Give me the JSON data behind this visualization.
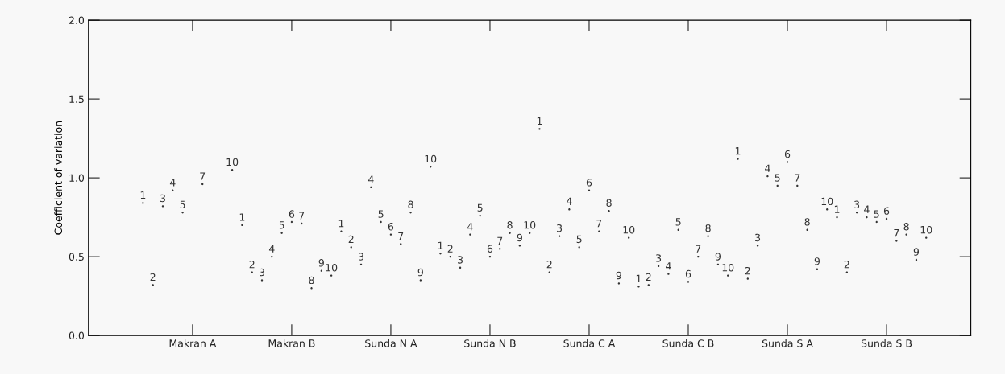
{
  "chart_data": {
    "type": "scatter",
    "ylabel": "Coefficient of variation",
    "categories": [
      null,
      null,
      null,
      null,
      null,
      "Makran A",
      null,
      null,
      null,
      null,
      null,
      null,
      null,
      null,
      null,
      "Makran B",
      null,
      null,
      null,
      null,
      null,
      null,
      null,
      null,
      null,
      "Sunda N A",
      null,
      null,
      null,
      null,
      null,
      null,
      null,
      null,
      null,
      "Sunda N B",
      null,
      null,
      null,
      null,
      null,
      null,
      null,
      null,
      null,
      "Sunda C A",
      null,
      null,
      null,
      null,
      null,
      null,
      null,
      null,
      null,
      "Sunda C B",
      null,
      null,
      null,
      null,
      null,
      null,
      null,
      null,
      null,
      "Sunda S A",
      null,
      null,
      null,
      null,
      null,
      null,
      null,
      null,
      null,
      "Sunda S B",
      null,
      null,
      null,
      null
    ],
    "ylim": [
      0,
      2.0
    ],
    "yticks": [
      {
        "value": 0,
        "label": "0.0"
      },
      0.5,
      {
        "value": 1,
        "label": "1.0"
      },
      1.5,
      {
        "value": 2,
        "label": "2.0"
      }
    ],
    "series": [
      {
        "name": "1",
        "color": "#333333",
        "values": [
          0.84,
          null,
          null,
          null,
          null,
          null,
          null,
          null,
          null,
          null,
          0.7,
          null,
          null,
          null,
          null,
          null,
          null,
          null,
          null,
          null,
          0.66,
          null,
          null,
          null,
          null,
          null,
          null,
          null,
          null,
          null,
          0.52,
          null,
          null,
          null,
          null,
          null,
          null,
          null,
          null,
          null,
          1.31,
          null,
          null,
          null,
          null,
          null,
          null,
          null,
          null,
          null,
          0.31,
          null,
          null,
          null,
          null,
          null,
          null,
          null,
          null,
          null,
          1.12,
          null,
          null,
          null,
          null,
          null,
          null,
          null,
          null,
          null,
          0.75,
          null,
          null,
          null,
          null,
          null,
          null,
          null,
          null,
          null
        ]
      },
      {
        "name": "2",
        "color": "#333333",
        "values": [
          null,
          0.32,
          null,
          null,
          null,
          null,
          null,
          null,
          null,
          null,
          null,
          0.4,
          null,
          null,
          null,
          null,
          null,
          null,
          null,
          null,
          null,
          0.56,
          null,
          null,
          null,
          null,
          null,
          null,
          null,
          null,
          null,
          0.5,
          null,
          null,
          null,
          null,
          null,
          null,
          null,
          null,
          null,
          0.4,
          null,
          null,
          null,
          null,
          null,
          null,
          null,
          null,
          null,
          0.32,
          null,
          null,
          null,
          null,
          null,
          null,
          null,
          null,
          null,
          0.36,
          null,
          null,
          null,
          null,
          null,
          null,
          null,
          null,
          null,
          0.4,
          null,
          null,
          null,
          null,
          null,
          null,
          null,
          null
        ]
      },
      {
        "name": "3",
        "color": "#333333",
        "values": [
          null,
          null,
          0.82,
          null,
          null,
          null,
          null,
          null,
          null,
          null,
          null,
          null,
          0.35,
          null,
          null,
          null,
          null,
          null,
          null,
          null,
          null,
          null,
          0.45,
          null,
          null,
          null,
          null,
          null,
          null,
          null,
          null,
          null,
          0.43,
          null,
          null,
          null,
          null,
          null,
          null,
          null,
          null,
          null,
          0.63,
          null,
          null,
          null,
          null,
          null,
          null,
          null,
          null,
          null,
          0.44,
          null,
          null,
          null,
          null,
          null,
          null,
          null,
          null,
          null,
          0.57,
          null,
          null,
          null,
          null,
          null,
          null,
          null,
          null,
          null,
          0.78,
          null,
          null,
          null,
          null,
          null,
          null,
          null
        ]
      },
      {
        "name": "4",
        "color": "#333333",
        "values": [
          null,
          null,
          null,
          0.92,
          null,
          null,
          null,
          null,
          null,
          null,
          null,
          null,
          null,
          0.5,
          null,
          null,
          null,
          null,
          null,
          null,
          null,
          null,
          null,
          0.94,
          null,
          null,
          null,
          null,
          null,
          null,
          null,
          null,
          null,
          0.64,
          null,
          null,
          null,
          null,
          null,
          null,
          null,
          null,
          null,
          0.8,
          null,
          null,
          null,
          null,
          null,
          null,
          null,
          null,
          null,
          0.39,
          null,
          null,
          null,
          null,
          null,
          null,
          null,
          null,
          null,
          1.01,
          null,
          null,
          null,
          null,
          null,
          null,
          null,
          null,
          null,
          0.75,
          null,
          null,
          null,
          null,
          null,
          null
        ]
      },
      {
        "name": "5",
        "color": "#333333",
        "values": [
          null,
          null,
          null,
          null,
          0.78,
          null,
          null,
          null,
          null,
          null,
          null,
          null,
          null,
          null,
          0.65,
          null,
          null,
          null,
          null,
          null,
          null,
          null,
          null,
          null,
          0.72,
          null,
          null,
          null,
          null,
          null,
          null,
          null,
          null,
          null,
          0.76,
          null,
          null,
          null,
          null,
          null,
          null,
          null,
          null,
          null,
          0.56,
          null,
          null,
          null,
          null,
          null,
          null,
          null,
          null,
          null,
          0.67,
          null,
          null,
          null,
          null,
          null,
          null,
          null,
          null,
          null,
          0.95,
          null,
          null,
          null,
          null,
          null,
          null,
          null,
          null,
          null,
          0.72,
          null,
          null,
          null,
          null,
          null
        ]
      },
      {
        "name": "6",
        "color": "#333333",
        "values": [
          null,
          null,
          null,
          null,
          null,
          null,
          null,
          null,
          null,
          null,
          null,
          null,
          null,
          null,
          null,
          0.72,
          null,
          null,
          null,
          null,
          null,
          null,
          null,
          null,
          null,
          0.64,
          null,
          null,
          null,
          null,
          null,
          null,
          null,
          null,
          null,
          0.5,
          null,
          null,
          null,
          null,
          null,
          null,
          null,
          null,
          null,
          0.92,
          null,
          null,
          null,
          null,
          null,
          null,
          null,
          null,
          null,
          0.34,
          null,
          null,
          null,
          null,
          null,
          null,
          null,
          null,
          null,
          1.1,
          null,
          null,
          null,
          null,
          null,
          null,
          null,
          null,
          null,
          0.74,
          null,
          null,
          null,
          null
        ]
      },
      {
        "name": "7",
        "color": "#333333",
        "values": [
          null,
          null,
          null,
          null,
          null,
          null,
          0.96,
          null,
          null,
          null,
          null,
          null,
          null,
          null,
          null,
          null,
          0.71,
          null,
          null,
          null,
          null,
          null,
          null,
          null,
          null,
          null,
          0.58,
          null,
          null,
          null,
          null,
          null,
          null,
          null,
          null,
          null,
          0.55,
          null,
          null,
          null,
          null,
          null,
          null,
          null,
          null,
          null,
          0.66,
          null,
          null,
          null,
          null,
          null,
          null,
          null,
          null,
          null,
          0.5,
          null,
          null,
          null,
          null,
          null,
          null,
          null,
          null,
          null,
          0.95,
          null,
          null,
          null,
          null,
          null,
          null,
          null,
          null,
          null,
          0.6,
          null,
          null,
          null
        ]
      },
      {
        "name": "8",
        "color": "#333333",
        "values": [
          null,
          null,
          null,
          null,
          null,
          null,
          null,
          null,
          null,
          null,
          null,
          null,
          null,
          null,
          null,
          null,
          null,
          0.3,
          null,
          null,
          null,
          null,
          null,
          null,
          null,
          null,
          null,
          0.78,
          null,
          null,
          null,
          null,
          null,
          null,
          null,
          null,
          null,
          0.65,
          null,
          null,
          null,
          null,
          null,
          null,
          null,
          null,
          null,
          0.79,
          null,
          null,
          null,
          null,
          null,
          null,
          null,
          null,
          null,
          0.63,
          null,
          null,
          null,
          null,
          null,
          null,
          null,
          null,
          null,
          0.67,
          null,
          null,
          null,
          null,
          null,
          null,
          null,
          null,
          null,
          0.64,
          null,
          null
        ]
      },
      {
        "name": "9",
        "color": "#333333",
        "values": [
          null,
          null,
          null,
          null,
          null,
          null,
          null,
          null,
          null,
          null,
          null,
          null,
          null,
          null,
          null,
          null,
          null,
          null,
          0.41,
          null,
          null,
          null,
          null,
          null,
          null,
          null,
          null,
          null,
          0.35,
          null,
          null,
          null,
          null,
          null,
          null,
          null,
          null,
          null,
          0.57,
          null,
          null,
          null,
          null,
          null,
          null,
          null,
          null,
          null,
          0.33,
          null,
          null,
          null,
          null,
          null,
          null,
          null,
          null,
          null,
          0.45,
          null,
          null,
          null,
          null,
          null,
          null,
          null,
          null,
          null,
          0.42,
          null,
          null,
          null,
          null,
          null,
          null,
          null,
          null,
          null,
          0.48,
          null
        ]
      },
      {
        "name": "10",
        "color": "#333333",
        "values": [
          null,
          null,
          null,
          null,
          null,
          null,
          null,
          null,
          null,
          1.05,
          null,
          null,
          null,
          null,
          null,
          null,
          null,
          null,
          null,
          0.38,
          null,
          null,
          null,
          null,
          null,
          null,
          null,
          null,
          null,
          1.07,
          null,
          null,
          null,
          null,
          null,
          null,
          null,
          null,
          null,
          0.65,
          null,
          null,
          null,
          null,
          null,
          null,
          null,
          null,
          null,
          0.62,
          null,
          null,
          null,
          null,
          null,
          null,
          null,
          null,
          null,
          0.38,
          null,
          null,
          null,
          null,
          null,
          null,
          null,
          null,
          null,
          0.8,
          null,
          null,
          null,
          null,
          null,
          null,
          null,
          null,
          null,
          0.62
        ]
      }
    ]
  }
}
